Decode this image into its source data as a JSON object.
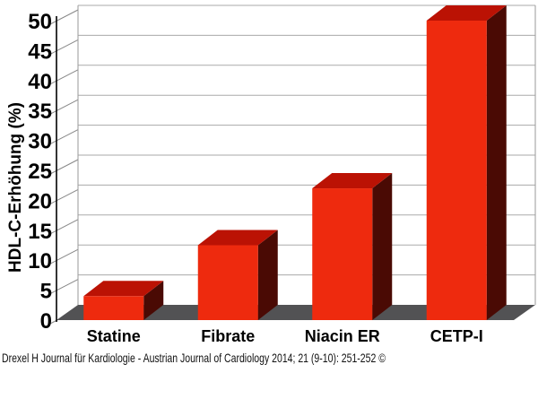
{
  "caption": {
    "text": "Drexel H Journal für Kardiologie - Austrian Journal of Cardiology 2014; 21 (9-10): 251-252 ©"
  },
  "chart_data": {
    "type": "bar",
    "style": "3d-bars",
    "title": "",
    "xlabel": "",
    "ylabel": "HDL-C-Erhöhung (%)",
    "categories": [
      "Statine",
      "Fibrate",
      "Niacin ER",
      "CETP-I"
    ],
    "values": [
      4,
      12.5,
      22,
      50
    ],
    "ylim": [
      0,
      50
    ],
    "ytick_step": 5,
    "ytick_labels": [
      "0",
      "5",
      "10",
      "15",
      "20",
      "25",
      "30",
      "35",
      "40",
      "45",
      "50"
    ],
    "grid": true,
    "legend": false,
    "colors": {
      "bar_front": "#ee2a0e",
      "bar_top": "#bb1204",
      "bar_side": "#4a0a04",
      "floor": "#525254",
      "gridline": "#aaaaaa",
      "connector": "#888888",
      "wall_edge": "#999999",
      "axis": "#000000",
      "text": "#000000",
      "background": "#ffffff"
    }
  }
}
